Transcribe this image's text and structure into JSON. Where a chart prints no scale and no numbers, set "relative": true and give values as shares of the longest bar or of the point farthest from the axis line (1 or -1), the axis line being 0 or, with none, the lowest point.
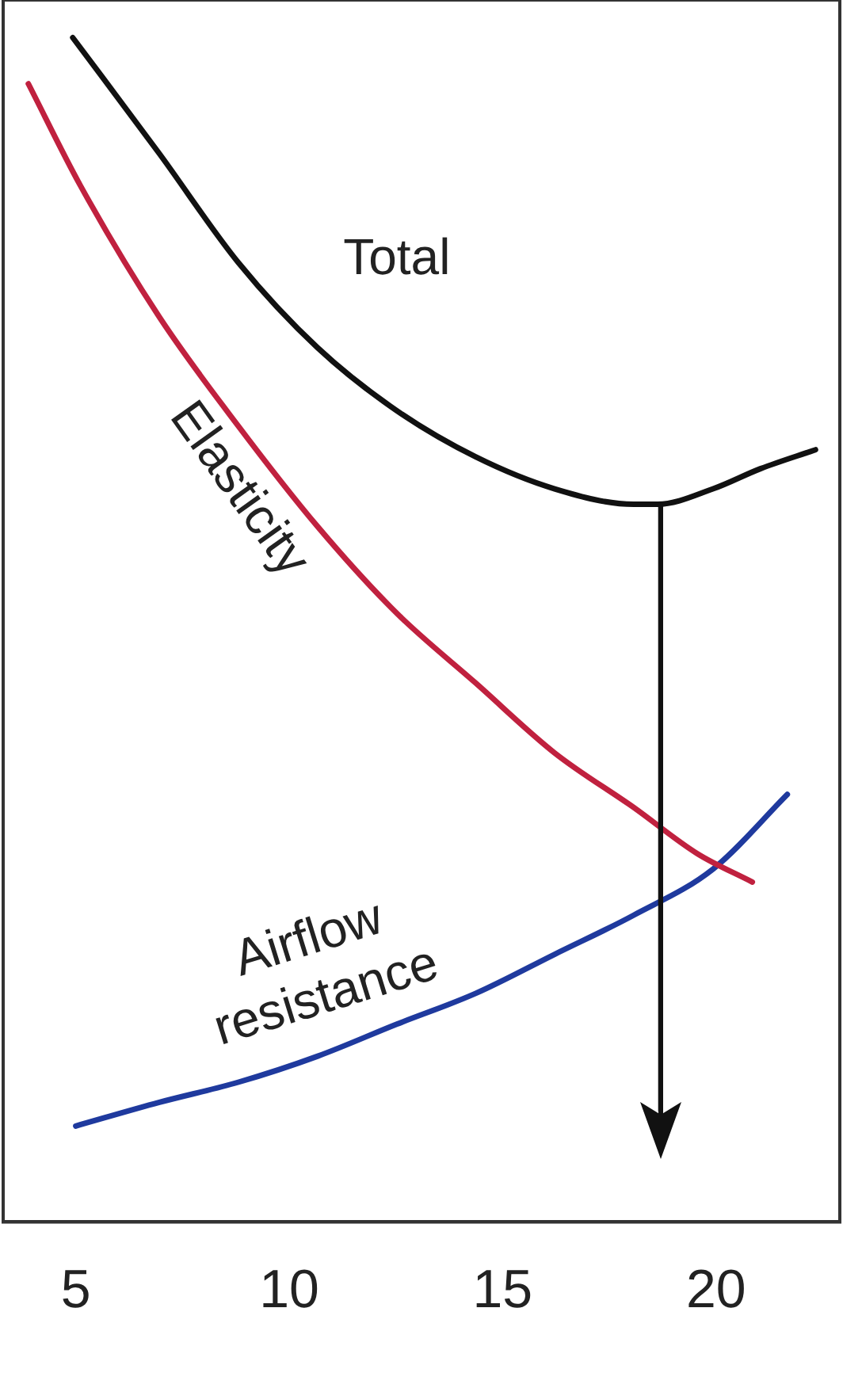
{
  "chart_data": {
    "type": "line",
    "relative": true,
    "legend": false,
    "grid": false,
    "marker": "none",
    "line_style": "solid",
    "xlim": [
      3.3,
      22.9
    ],
    "xticks": [
      5,
      10,
      15,
      20
    ],
    "ref_lines": [
      {
        "axis": "x",
        "value": 18.7,
        "label": null,
        "color": "#111111"
      }
    ],
    "series": [
      {
        "name": "Total",
        "color": "#111111",
        "x": [
          4.93,
          6.96,
          8.81,
          10.67,
          12.52,
          14.37,
          16.22,
          18.07,
          18.63,
          19.93,
          21.04,
          22.33
        ],
        "values": [
          1.0,
          0.902,
          0.81,
          0.738,
          0.685,
          0.646,
          0.619,
          0.606,
          0.606,
          0.619,
          0.636,
          0.652
        ]
      },
      {
        "name": "Elasticity",
        "color": "#c0213f",
        "x": [
          3.89,
          5.11,
          6.96,
          8.81,
          10.67,
          12.52,
          14.37,
          16.22,
          18.07,
          19.56,
          20.85
        ],
        "values": [
          0.961,
          0.875,
          0.764,
          0.672,
          0.587,
          0.514,
          0.455,
          0.396,
          0.35,
          0.311,
          0.287
        ]
      },
      {
        "name": "Airflow resistance",
        "color": "#1f3a9e",
        "x": [
          5.0,
          6.96,
          8.81,
          10.67,
          12.52,
          14.37,
          16.22,
          18.07,
          19.93,
          21.67
        ],
        "values": [
          0.081,
          0.101,
          0.118,
          0.14,
          0.167,
          0.193,
          0.226,
          0.259,
          0.298,
          0.361
        ]
      }
    ]
  }
}
